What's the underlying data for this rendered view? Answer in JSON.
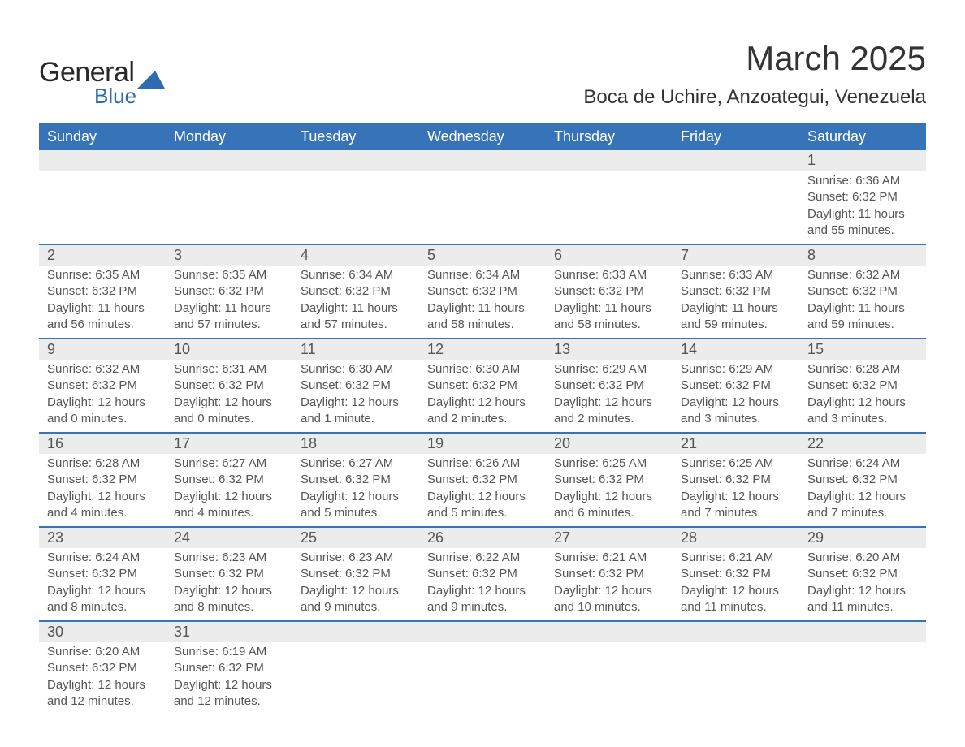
{
  "logo": {
    "text1": "General",
    "text2": "Blue",
    "icon_color": "#2e6bb0"
  },
  "header": {
    "month": "March 2025",
    "location": "Boca de Uchire, Anzoategui, Venezuela"
  },
  "theme": {
    "header_bg": "#3673b9",
    "header_text": "#ffffff",
    "daynum_bg": "#ececec",
    "divider": "#3673b9",
    "body_text": "#555555",
    "page_bg": "#ffffff"
  },
  "day_names": [
    "Sunday",
    "Monday",
    "Tuesday",
    "Wednesday",
    "Thursday",
    "Friday",
    "Saturday"
  ],
  "weeks": [
    [
      null,
      null,
      null,
      null,
      null,
      null,
      {
        "n": "1",
        "sr": "Sunrise: 6:36 AM",
        "ss": "Sunset: 6:32 PM",
        "d1": "Daylight: 11 hours",
        "d2": "and 55 minutes."
      }
    ],
    [
      {
        "n": "2",
        "sr": "Sunrise: 6:35 AM",
        "ss": "Sunset: 6:32 PM",
        "d1": "Daylight: 11 hours",
        "d2": "and 56 minutes."
      },
      {
        "n": "3",
        "sr": "Sunrise: 6:35 AM",
        "ss": "Sunset: 6:32 PM",
        "d1": "Daylight: 11 hours",
        "d2": "and 57 minutes."
      },
      {
        "n": "4",
        "sr": "Sunrise: 6:34 AM",
        "ss": "Sunset: 6:32 PM",
        "d1": "Daylight: 11 hours",
        "d2": "and 57 minutes."
      },
      {
        "n": "5",
        "sr": "Sunrise: 6:34 AM",
        "ss": "Sunset: 6:32 PM",
        "d1": "Daylight: 11 hours",
        "d2": "and 58 minutes."
      },
      {
        "n": "6",
        "sr": "Sunrise: 6:33 AM",
        "ss": "Sunset: 6:32 PM",
        "d1": "Daylight: 11 hours",
        "d2": "and 58 minutes."
      },
      {
        "n": "7",
        "sr": "Sunrise: 6:33 AM",
        "ss": "Sunset: 6:32 PM",
        "d1": "Daylight: 11 hours",
        "d2": "and 59 minutes."
      },
      {
        "n": "8",
        "sr": "Sunrise: 6:32 AM",
        "ss": "Sunset: 6:32 PM",
        "d1": "Daylight: 11 hours",
        "d2": "and 59 minutes."
      }
    ],
    [
      {
        "n": "9",
        "sr": "Sunrise: 6:32 AM",
        "ss": "Sunset: 6:32 PM",
        "d1": "Daylight: 12 hours",
        "d2": "and 0 minutes."
      },
      {
        "n": "10",
        "sr": "Sunrise: 6:31 AM",
        "ss": "Sunset: 6:32 PM",
        "d1": "Daylight: 12 hours",
        "d2": "and 0 minutes."
      },
      {
        "n": "11",
        "sr": "Sunrise: 6:30 AM",
        "ss": "Sunset: 6:32 PM",
        "d1": "Daylight: 12 hours",
        "d2": "and 1 minute."
      },
      {
        "n": "12",
        "sr": "Sunrise: 6:30 AM",
        "ss": "Sunset: 6:32 PM",
        "d1": "Daylight: 12 hours",
        "d2": "and 2 minutes."
      },
      {
        "n": "13",
        "sr": "Sunrise: 6:29 AM",
        "ss": "Sunset: 6:32 PM",
        "d1": "Daylight: 12 hours",
        "d2": "and 2 minutes."
      },
      {
        "n": "14",
        "sr": "Sunrise: 6:29 AM",
        "ss": "Sunset: 6:32 PM",
        "d1": "Daylight: 12 hours",
        "d2": "and 3 minutes."
      },
      {
        "n": "15",
        "sr": "Sunrise: 6:28 AM",
        "ss": "Sunset: 6:32 PM",
        "d1": "Daylight: 12 hours",
        "d2": "and 3 minutes."
      }
    ],
    [
      {
        "n": "16",
        "sr": "Sunrise: 6:28 AM",
        "ss": "Sunset: 6:32 PM",
        "d1": "Daylight: 12 hours",
        "d2": "and 4 minutes."
      },
      {
        "n": "17",
        "sr": "Sunrise: 6:27 AM",
        "ss": "Sunset: 6:32 PM",
        "d1": "Daylight: 12 hours",
        "d2": "and 4 minutes."
      },
      {
        "n": "18",
        "sr": "Sunrise: 6:27 AM",
        "ss": "Sunset: 6:32 PM",
        "d1": "Daylight: 12 hours",
        "d2": "and 5 minutes."
      },
      {
        "n": "19",
        "sr": "Sunrise: 6:26 AM",
        "ss": "Sunset: 6:32 PM",
        "d1": "Daylight: 12 hours",
        "d2": "and 5 minutes."
      },
      {
        "n": "20",
        "sr": "Sunrise: 6:25 AM",
        "ss": "Sunset: 6:32 PM",
        "d1": "Daylight: 12 hours",
        "d2": "and 6 minutes."
      },
      {
        "n": "21",
        "sr": "Sunrise: 6:25 AM",
        "ss": "Sunset: 6:32 PM",
        "d1": "Daylight: 12 hours",
        "d2": "and 7 minutes."
      },
      {
        "n": "22",
        "sr": "Sunrise: 6:24 AM",
        "ss": "Sunset: 6:32 PM",
        "d1": "Daylight: 12 hours",
        "d2": "and 7 minutes."
      }
    ],
    [
      {
        "n": "23",
        "sr": "Sunrise: 6:24 AM",
        "ss": "Sunset: 6:32 PM",
        "d1": "Daylight: 12 hours",
        "d2": "and 8 minutes."
      },
      {
        "n": "24",
        "sr": "Sunrise: 6:23 AM",
        "ss": "Sunset: 6:32 PM",
        "d1": "Daylight: 12 hours",
        "d2": "and 8 minutes."
      },
      {
        "n": "25",
        "sr": "Sunrise: 6:23 AM",
        "ss": "Sunset: 6:32 PM",
        "d1": "Daylight: 12 hours",
        "d2": "and 9 minutes."
      },
      {
        "n": "26",
        "sr": "Sunrise: 6:22 AM",
        "ss": "Sunset: 6:32 PM",
        "d1": "Daylight: 12 hours",
        "d2": "and 9 minutes."
      },
      {
        "n": "27",
        "sr": "Sunrise: 6:21 AM",
        "ss": "Sunset: 6:32 PM",
        "d1": "Daylight: 12 hours",
        "d2": "and 10 minutes."
      },
      {
        "n": "28",
        "sr": "Sunrise: 6:21 AM",
        "ss": "Sunset: 6:32 PM",
        "d1": "Daylight: 12 hours",
        "d2": "and 11 minutes."
      },
      {
        "n": "29",
        "sr": "Sunrise: 6:20 AM",
        "ss": "Sunset: 6:32 PM",
        "d1": "Daylight: 12 hours",
        "d2": "and 11 minutes."
      }
    ],
    [
      {
        "n": "30",
        "sr": "Sunrise: 6:20 AM",
        "ss": "Sunset: 6:32 PM",
        "d1": "Daylight: 12 hours",
        "d2": "and 12 minutes."
      },
      {
        "n": "31",
        "sr": "Sunrise: 6:19 AM",
        "ss": "Sunset: 6:32 PM",
        "d1": "Daylight: 12 hours",
        "d2": "and 12 minutes."
      },
      null,
      null,
      null,
      null,
      null
    ]
  ]
}
